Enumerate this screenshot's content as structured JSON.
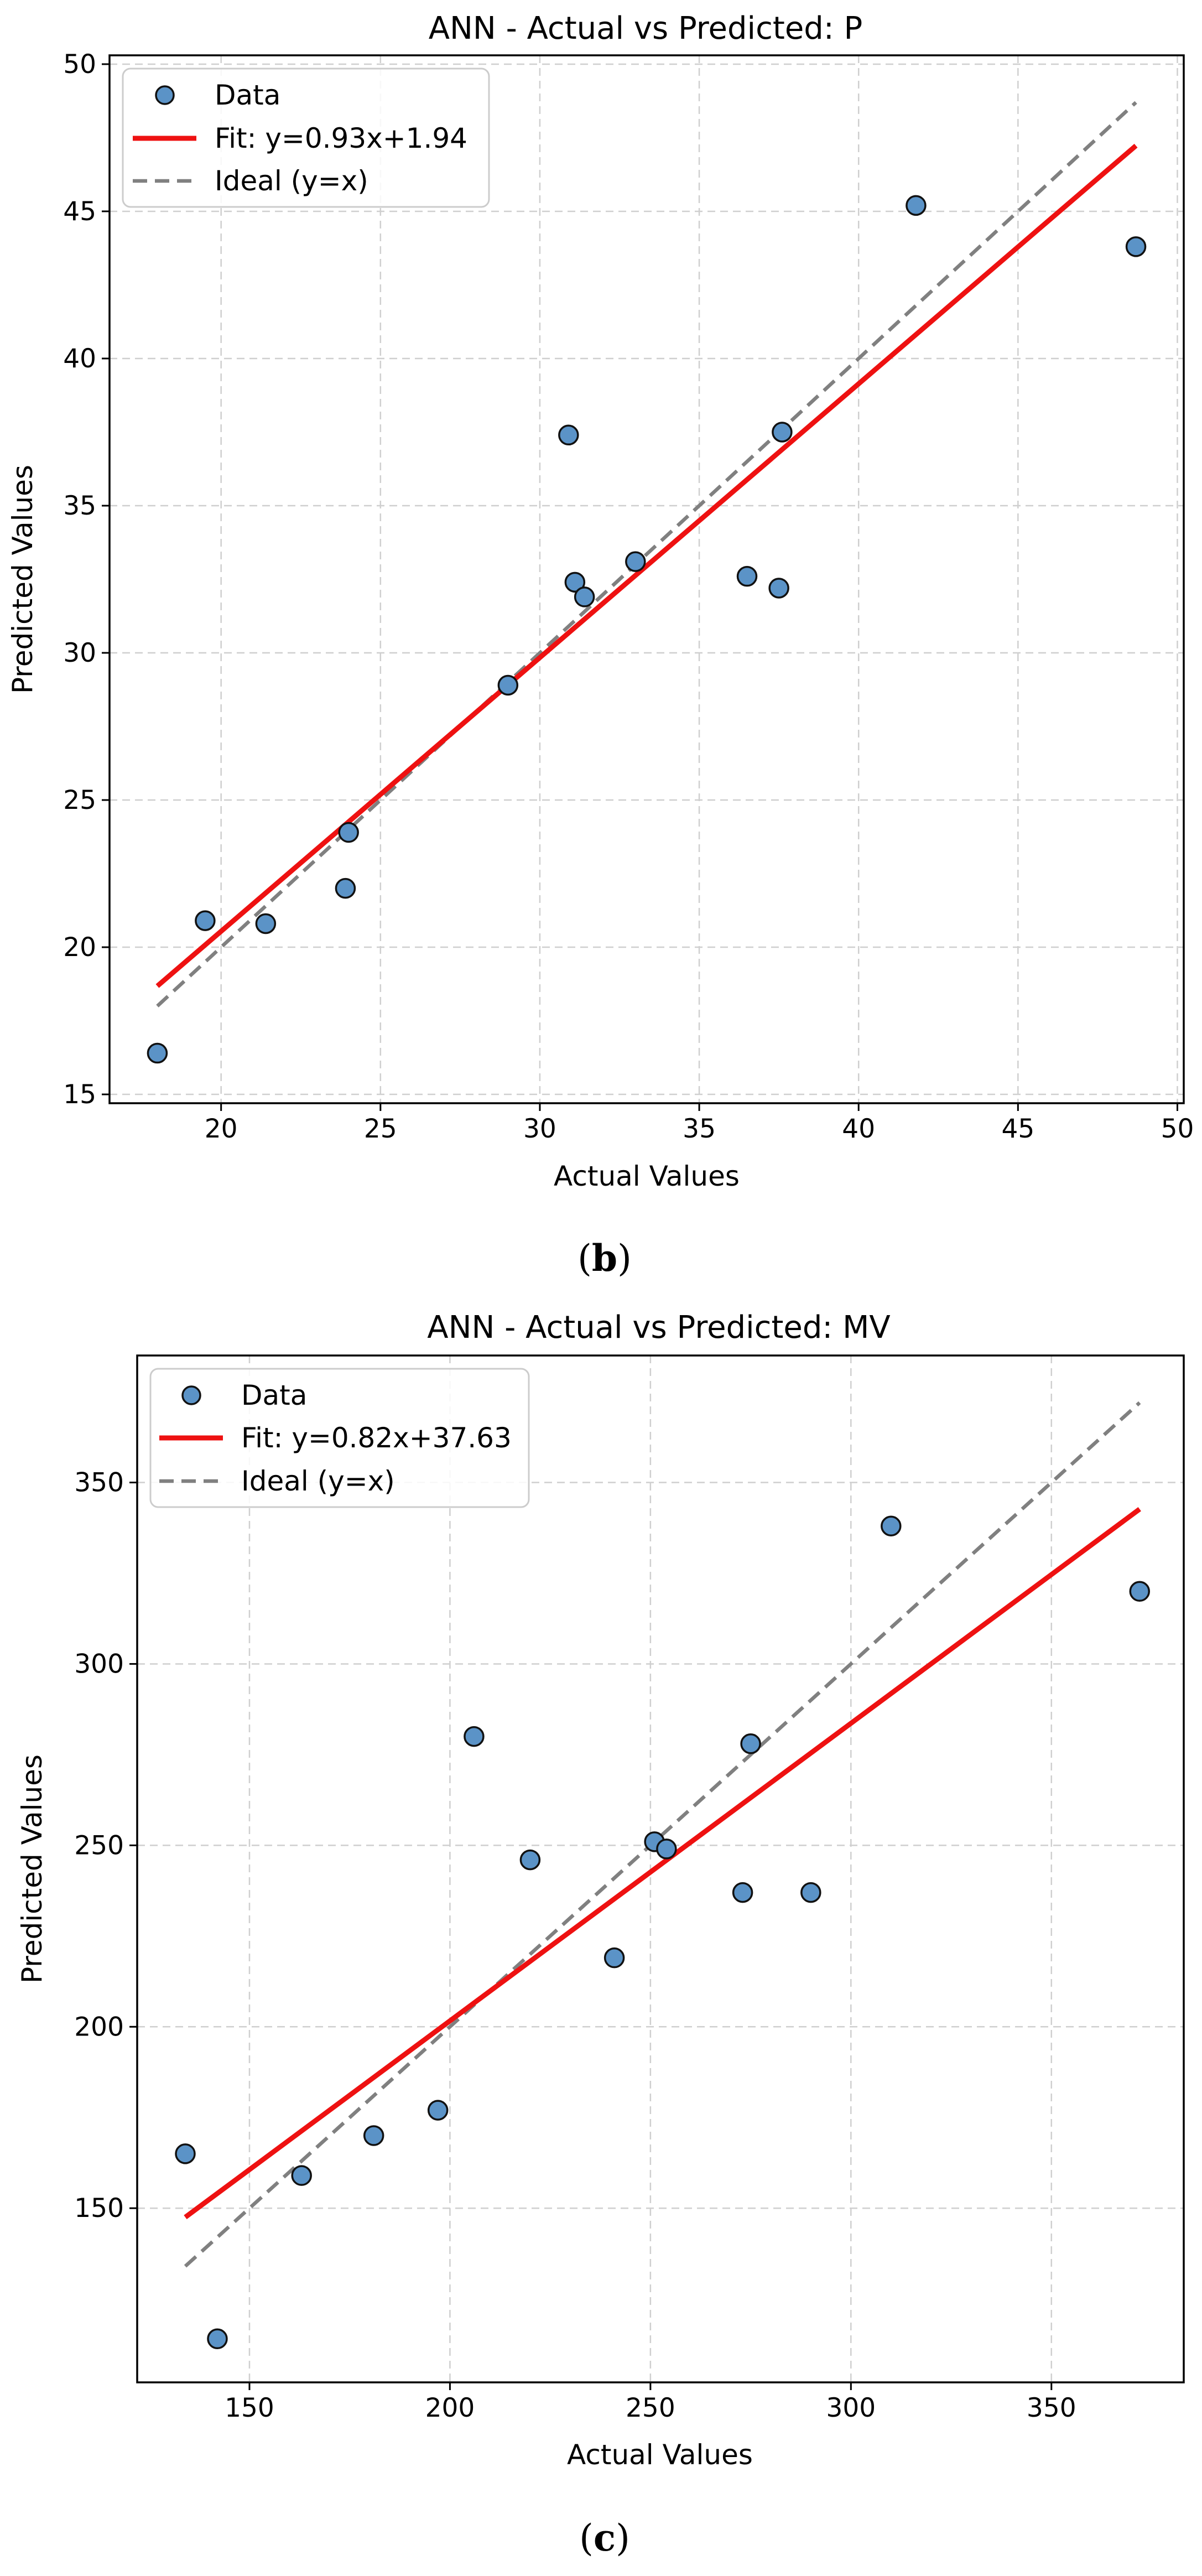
{
  "chart_data": [
    {
      "type": "scatter",
      "title": "ANN - Actual vs Predicted: P",
      "xlabel": "Actual Values",
      "ylabel": "Predicted Values",
      "xlim": [
        16.5,
        50.2
      ],
      "ylim": [
        14.7,
        50.3
      ],
      "xticks": [
        20,
        25,
        30,
        35,
        40,
        45,
        50
      ],
      "yticks": [
        15,
        20,
        25,
        30,
        35,
        40,
        45,
        50
      ],
      "grid": true,
      "legend_position": "top-left",
      "caption": "(b)",
      "caption_letter": "b",
      "legend": {
        "data": "Data",
        "fit": "Fit: y=0.93x+1.94",
        "ideal": "Ideal (y=x)"
      },
      "fit": {
        "slope": 0.93,
        "intercept": 1.94,
        "x_range": [
          18.0,
          48.7
        ]
      },
      "ideal": {
        "x_range": [
          18.0,
          48.7
        ]
      },
      "points": [
        {
          "x": 18.0,
          "y": 16.4
        },
        {
          "x": 19.5,
          "y": 20.9
        },
        {
          "x": 21.4,
          "y": 20.8
        },
        {
          "x": 23.9,
          "y": 22.0
        },
        {
          "x": 24.0,
          "y": 23.9
        },
        {
          "x": 29.0,
          "y": 28.9
        },
        {
          "x": 30.9,
          "y": 37.4
        },
        {
          "x": 31.1,
          "y": 32.4
        },
        {
          "x": 31.4,
          "y": 31.9
        },
        {
          "x": 33.0,
          "y": 33.1
        },
        {
          "x": 36.5,
          "y": 32.6
        },
        {
          "x": 37.5,
          "y": 32.2
        },
        {
          "x": 37.6,
          "y": 37.5
        },
        {
          "x": 41.8,
          "y": 45.2
        },
        {
          "x": 48.7,
          "y": 43.8
        }
      ],
      "colors": {
        "points": "#5b93c7",
        "fit": "#ee1111",
        "ideal": "#808080"
      }
    },
    {
      "type": "scatter",
      "title": "ANN - Actual vs Predicted: MV",
      "xlabel": "Actual Values",
      "ylabel": "Predicted Values",
      "xlim": [
        122,
        383
      ],
      "ylim": [
        102,
        385
      ],
      "xticks": [
        150,
        200,
        250,
        300,
        350
      ],
      "yticks": [
        150,
        200,
        250,
        300,
        350
      ],
      "grid": true,
      "legend_position": "top-left",
      "caption": "(c)",
      "caption_letter": "c",
      "legend": {
        "data": "Data",
        "fit": "Fit: y=0.82x+37.63",
        "ideal": "Ideal (y=x)"
      },
      "fit": {
        "slope": 0.82,
        "intercept": 37.63,
        "x_range": [
          134,
          372
        ]
      },
      "ideal": {
        "x_range": [
          134,
          372
        ]
      },
      "points": [
        {
          "x": 134,
          "y": 165
        },
        {
          "x": 142,
          "y": 114
        },
        {
          "x": 163,
          "y": 159
        },
        {
          "x": 181,
          "y": 170
        },
        {
          "x": 197,
          "y": 177
        },
        {
          "x": 206,
          "y": 280
        },
        {
          "x": 220,
          "y": 246
        },
        {
          "x": 241,
          "y": 219
        },
        {
          "x": 251,
          "y": 251
        },
        {
          "x": 254,
          "y": 249
        },
        {
          "x": 273,
          "y": 237
        },
        {
          "x": 275,
          "y": 278
        },
        {
          "x": 290,
          "y": 237
        },
        {
          "x": 310,
          "y": 338
        },
        {
          "x": 372,
          "y": 320
        }
      ],
      "colors": {
        "points": "#5b93c7",
        "fit": "#ee1111",
        "ideal": "#808080"
      }
    }
  ]
}
